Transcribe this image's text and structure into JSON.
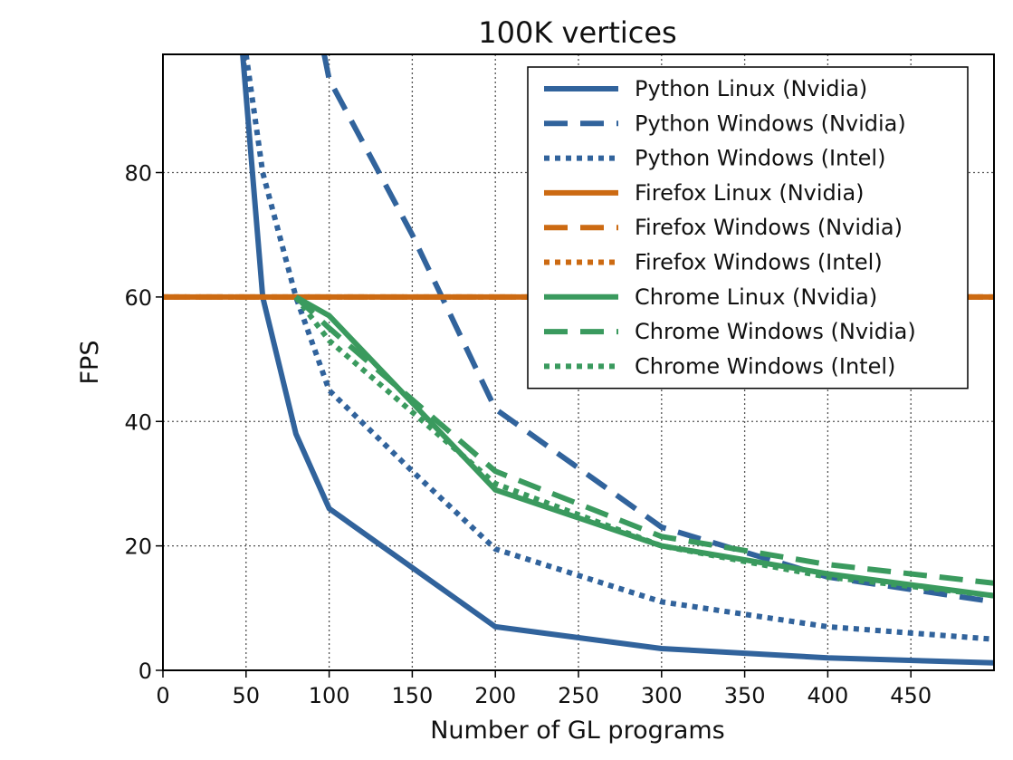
{
  "chart_data": {
    "type": "line",
    "title": "100K vertices",
    "xlabel": "Number of GL programs",
    "ylabel": "FPS",
    "xlim": [
      0,
      500
    ],
    "ylim": [
      0,
      99
    ],
    "xticks": [
      0,
      50,
      100,
      150,
      200,
      250,
      300,
      350,
      400,
      450
    ],
    "yticks": [
      0,
      20,
      40,
      60,
      80
    ],
    "grid": true,
    "legend_position": "top-right",
    "colors": {
      "python": "#31639c",
      "firefox": "#cc6a12",
      "chrome": "#3a9a5e"
    },
    "series": [
      {
        "name": "Python Linux (Nvidia)",
        "color": "#31639c",
        "dash": "solid",
        "x": [
          48,
          60,
          80,
          100,
          200,
          300,
          400,
          500
        ],
        "y": [
          99,
          60,
          38,
          26,
          7,
          3.5,
          2,
          1.2
        ]
      },
      {
        "name": "Python Windows (Nvidia)",
        "color": "#31639c",
        "dash": "dashed",
        "x": [
          97,
          100,
          150,
          200,
          300,
          400,
          500
        ],
        "y": [
          99,
          95,
          70,
          42,
          23,
          15,
          11
        ]
      },
      {
        "name": "Python Windows (Intel)",
        "color": "#31639c",
        "dash": "dotted",
        "x": [
          50,
          60,
          80,
          100,
          150,
          200,
          300,
          400,
          500
        ],
        "y": [
          99,
          80,
          60,
          45,
          32,
          19.5,
          11,
          7,
          5
        ]
      },
      {
        "name": "Firefox Linux (Nvidia)",
        "color": "#cc6a12",
        "dash": "solid",
        "x": [
          0,
          500
        ],
        "y": [
          60,
          60
        ]
      },
      {
        "name": "Firefox Windows (Nvidia)",
        "color": "#cc6a12",
        "dash": "dashed",
        "x": [
          0,
          500
        ],
        "y": [
          60,
          60
        ]
      },
      {
        "name": "Firefox Windows (Intel)",
        "color": "#cc6a12",
        "dash": "dotted",
        "x": [
          0,
          500
        ],
        "y": [
          60,
          60
        ]
      },
      {
        "name": "Chrome Linux (Nvidia)",
        "color": "#3a9a5e",
        "dash": "solid",
        "x": [
          80,
          100,
          200,
          300,
          400,
          500
        ],
        "y": [
          60,
          57,
          29,
          20,
          15.5,
          12
        ]
      },
      {
        "name": "Chrome Windows (Nvidia)",
        "color": "#3a9a5e",
        "dash": "dashed",
        "x": [
          80,
          100,
          200,
          300,
          400,
          500
        ],
        "y": [
          60,
          55,
          32,
          21.5,
          17,
          14
        ]
      },
      {
        "name": "Chrome Windows (Intel)",
        "color": "#3a9a5e",
        "dash": "dotted",
        "x": [
          80,
          100,
          200,
          300,
          400,
          500
        ],
        "y": [
          60,
          53,
          30,
          20,
          15,
          12
        ]
      }
    ]
  }
}
